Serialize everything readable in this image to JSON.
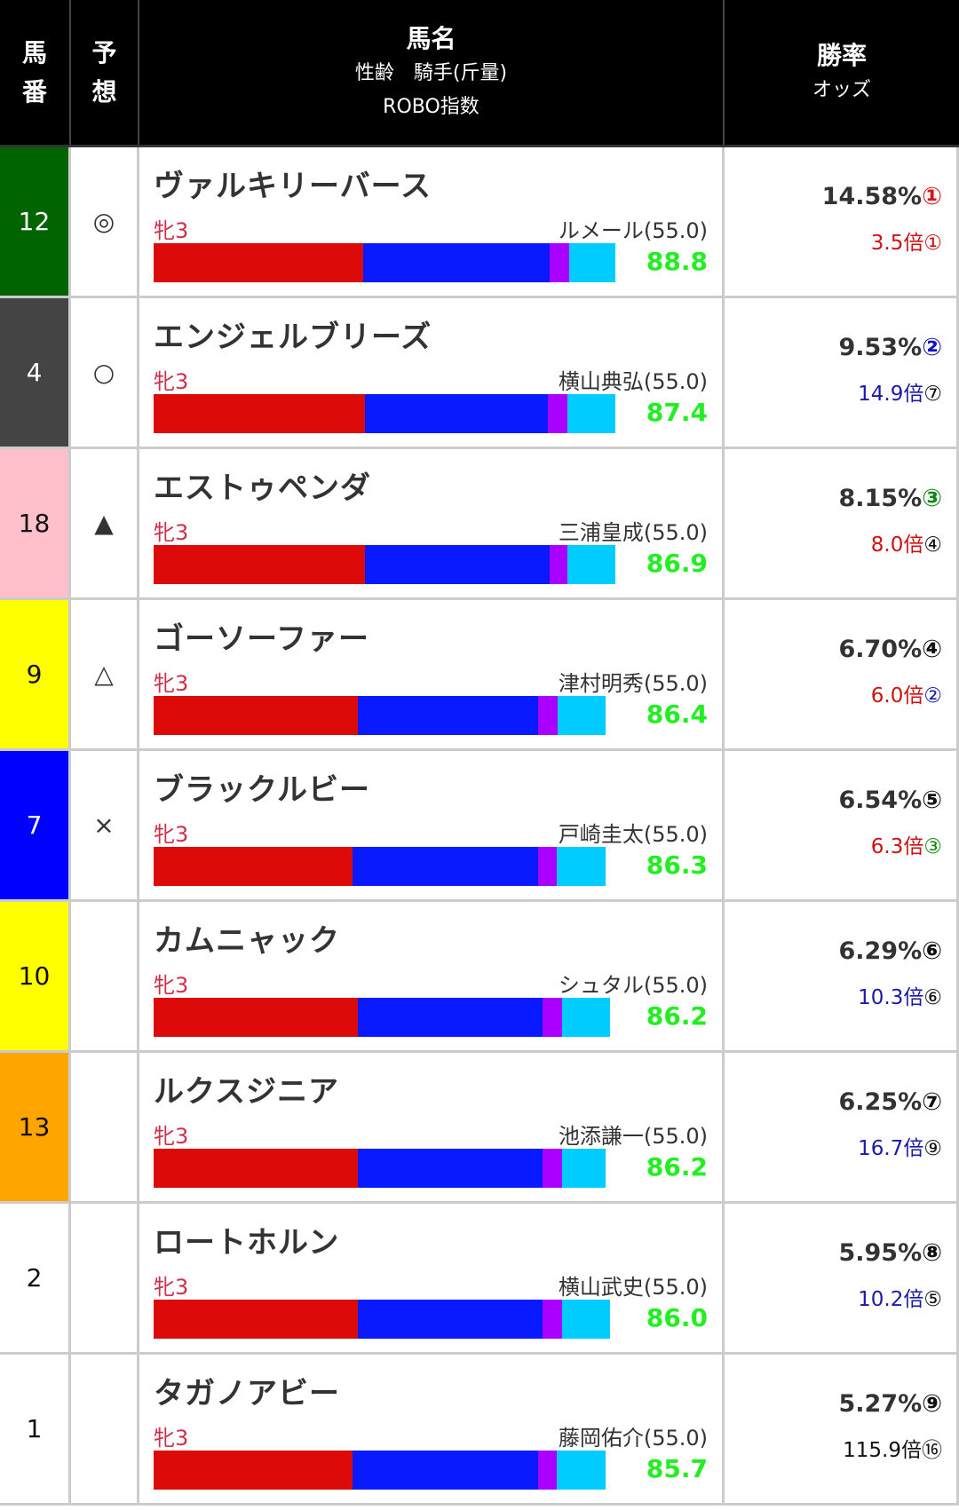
{
  "header": {
    "umaban": [
      "馬",
      "番"
    ],
    "yoso": [
      "予",
      "想"
    ],
    "main_title": "馬名",
    "main_sub1": "性齢　騎手(斤量)",
    "main_sub2": "ROBO指数",
    "rate_title": "勝率",
    "odds_title": "オッズ"
  },
  "bar_colors": [
    "#dd0a0a",
    "#0a1aff",
    "#aa00ff",
    "#00ccff"
  ],
  "score_color": "#22ee22",
  "rows": [
    {
      "num": "12",
      "frame_bg": "#006400",
      "frame_fg": "#ffffff",
      "mark": "◎",
      "name": "ヴァルキリーバース",
      "sex": "牝3",
      "jockey": "ルメール(55.0)",
      "bar_pct": [
        38.5,
        34.2,
        3.5,
        8.5
      ],
      "score": "88.8",
      "rate": "14.58%",
      "rate_rank": "①",
      "rate_rank_color": "#dd1111",
      "odds": "3.5倍",
      "odds_color": "#cc1111",
      "odds_rank": "①",
      "odds_rank_color": "#cc1111"
    },
    {
      "num": "4",
      "frame_bg": "#444444",
      "frame_fg": "#ffffff",
      "mark": "○",
      "name": "エンジェルブリーズ",
      "sex": "牝3",
      "jockey": "横山典弘(55.0)",
      "bar_pct": [
        38.5,
        33.3,
        3.5,
        8.7
      ],
      "score": "87.4",
      "rate": "9.53%",
      "rate_rank": "②",
      "rate_rank_color": "#1111cc",
      "odds": "14.9倍",
      "odds_color": "#1a1aaa",
      "odds_rank": "⑦",
      "odds_rank_color": "#111111"
    },
    {
      "num": "18",
      "frame_bg": "#ffc0cb",
      "frame_fg": "#111111",
      "mark": "▲",
      "name": "エストゥペンダ",
      "sex": "牝3",
      "jockey": "三浦皇成(55.0)",
      "bar_pct": [
        38.5,
        33.5,
        3.3,
        8.7
      ],
      "score": "86.9",
      "rate": "8.15%",
      "rate_rank": "③",
      "rate_rank_color": "#118811",
      "odds": "8.0倍",
      "odds_color": "#cc1111",
      "odds_rank": "④",
      "odds_rank_color": "#111111"
    },
    {
      "num": "9",
      "frame_bg": "#ffff00",
      "frame_fg": "#111111",
      "mark": "△",
      "name": "ゴーソーファー",
      "sex": "牝3",
      "jockey": "津村明秀(55.0)",
      "bar_pct": [
        36.8,
        32.5,
        3.5,
        8.7
      ],
      "score": "86.4",
      "rate": "6.70%",
      "rate_rank": "④",
      "rate_rank_color": "#111111",
      "odds": "6.0倍",
      "odds_color": "#cc1111",
      "odds_rank": "②",
      "odds_rank_color": "#1a1aaa"
    },
    {
      "num": "7",
      "frame_bg": "#0000ff",
      "frame_fg": "#ffffff",
      "mark": "×",
      "name": "ブラックルビー",
      "sex": "牝3",
      "jockey": "戸崎圭太(55.0)",
      "bar_pct": [
        35.9,
        33.3,
        3.5,
        8.7
      ],
      "score": "86.3",
      "rate": "6.54%",
      "rate_rank": "⑤",
      "rate_rank_color": "#111111",
      "odds": "6.3倍",
      "odds_color": "#cc1111",
      "odds_rank": "③",
      "odds_rank_color": "#118811"
    },
    {
      "num": "10",
      "frame_bg": "#ffff00",
      "frame_fg": "#111111",
      "mark": "",
      "name": "カムニャック",
      "sex": "牝3",
      "jockey": "シュタル(55.0)",
      "bar_pct": [
        36.8,
        33.3,
        3.5,
        8.7
      ],
      "score": "86.2",
      "rate": "6.29%",
      "rate_rank": "⑥",
      "rate_rank_color": "#111111",
      "odds": "10.3倍",
      "odds_color": "#1a1aaa",
      "odds_rank": "⑥",
      "odds_rank_color": "#111111"
    },
    {
      "num": "13",
      "frame_bg": "#ffa500",
      "frame_fg": "#111111",
      "mark": "",
      "name": "ルクスジニア",
      "sex": "牝3",
      "jockey": "池添謙一(55.0)",
      "bar_pct": [
        36.8,
        33.3,
        3.5,
        7.8
      ],
      "score": "86.2",
      "rate": "6.25%",
      "rate_rank": "⑦",
      "rate_rank_color": "#111111",
      "odds": "16.7倍",
      "odds_color": "#1a1aaa",
      "odds_rank": "⑨",
      "odds_rank_color": "#111111"
    },
    {
      "num": "2",
      "frame_bg": "#ffffff",
      "frame_fg": "#111111",
      "mark": "",
      "name": "ロートホルン",
      "sex": "牝3",
      "jockey": "横山武史(55.0)",
      "bar_pct": [
        36.8,
        33.3,
        3.5,
        8.7
      ],
      "score": "86.0",
      "rate": "5.95%",
      "rate_rank": "⑧",
      "rate_rank_color": "#111111",
      "odds": "10.2倍",
      "odds_color": "#1a1aaa",
      "odds_rank": "⑤",
      "odds_rank_color": "#111111"
    },
    {
      "num": "1",
      "frame_bg": "#ffffff",
      "frame_fg": "#111111",
      "mark": "",
      "name": "タガノアビー",
      "sex": "牝3",
      "jockey": "藤岡佑介(55.0)",
      "bar_pct": [
        35.9,
        33.3,
        3.5,
        8.7
      ],
      "score": "85.7",
      "rate": "5.27%",
      "rate_rank": "⑨",
      "rate_rank_color": "#111111",
      "odds": "115.9倍",
      "odds_color": "#111111",
      "odds_rank": "⑯",
      "odds_rank_color": "#111111"
    }
  ]
}
